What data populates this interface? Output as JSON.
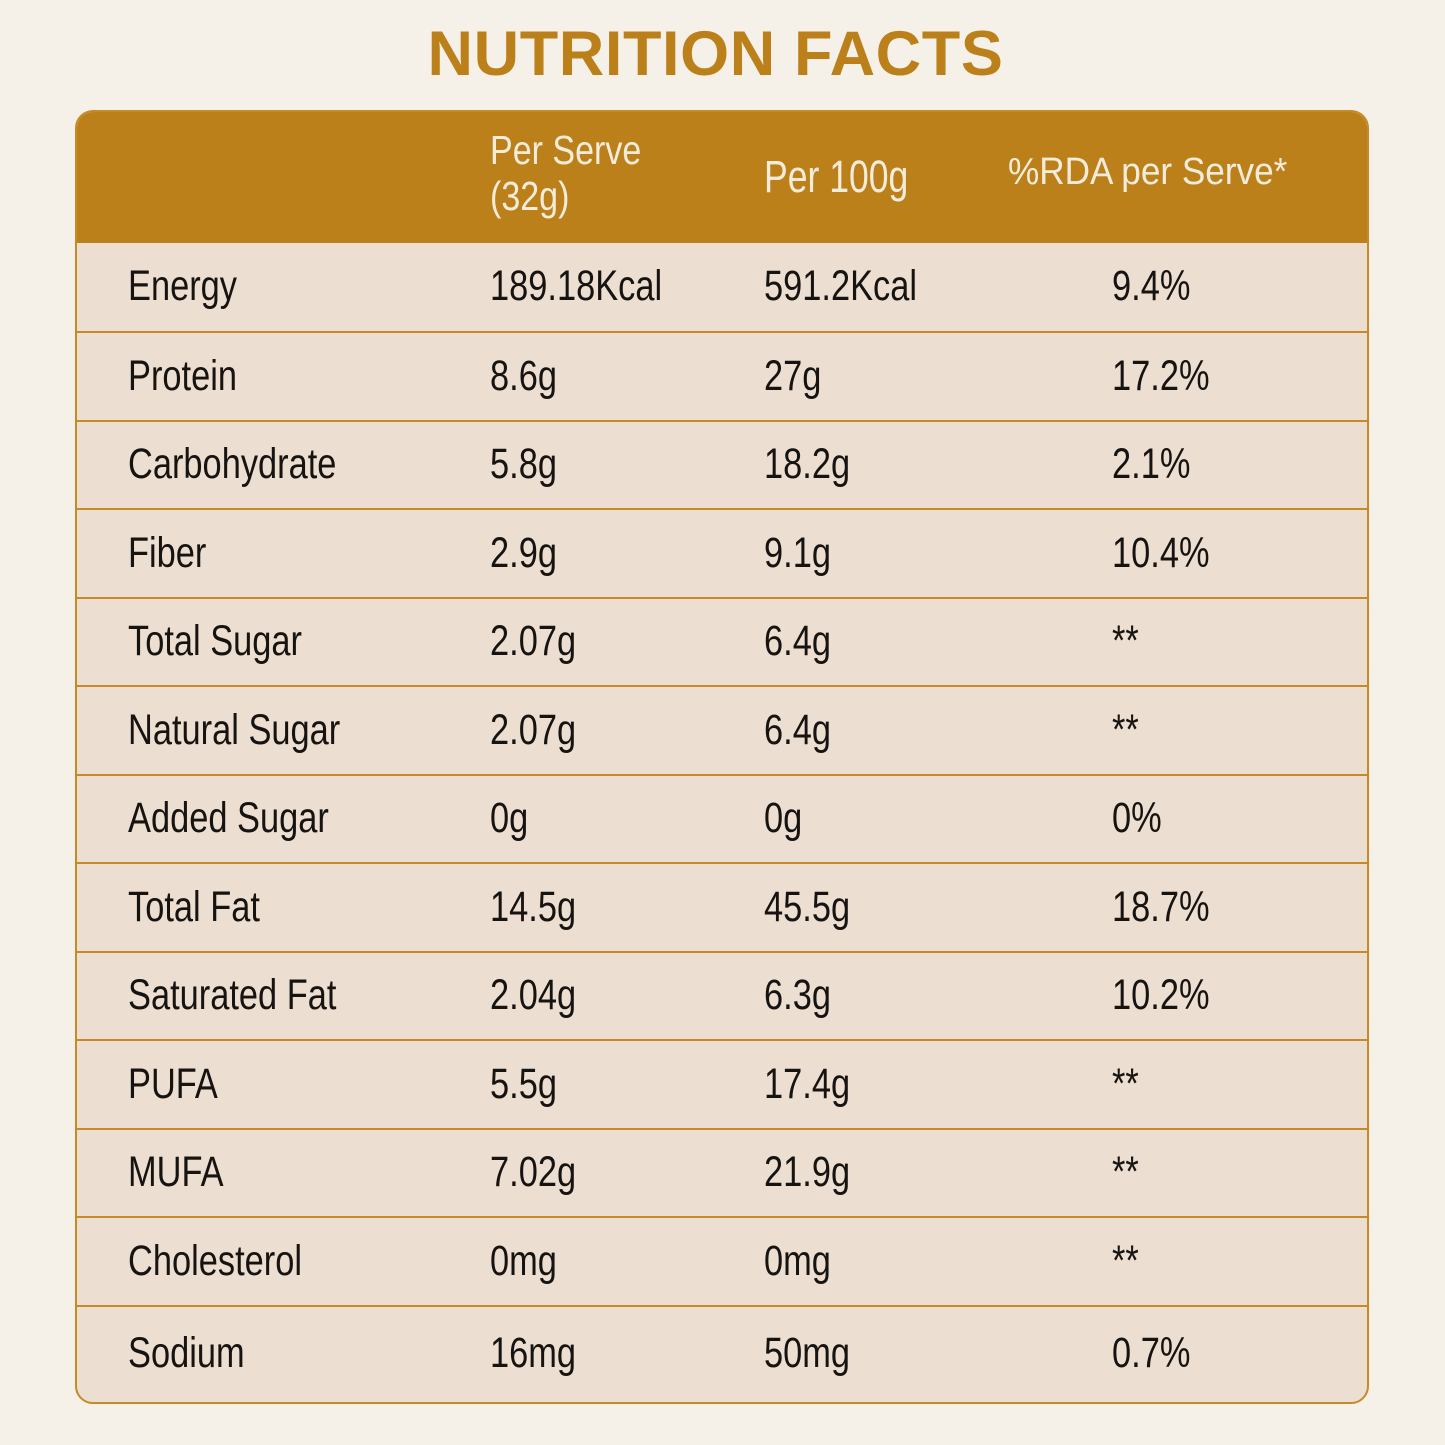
{
  "title": "NUTRITION FACTS",
  "colors": {
    "accent_gold": "#bc801a",
    "line_gold": "#c68a26",
    "page_background": "#f6f1e8",
    "row_background": "#ecdfd2",
    "body_text": "#171310",
    "header_text": "#f4ecdb"
  },
  "table": {
    "header": {
      "nutrient_column": "",
      "per_serve_line1": "Per Serve",
      "per_serve_line2": "(32g)",
      "per_100g": "Per 100g",
      "rda_per_serve": "%RDA per Serve*"
    },
    "rows": [
      {
        "label": "Energy",
        "per_serve": "189.18Kcal",
        "per_100g": "591.2Kcal",
        "rda_per_serve": "9.4%"
      },
      {
        "label": "Protein",
        "per_serve": "8.6g",
        "per_100g": "27g",
        "rda_per_serve": "17.2%"
      },
      {
        "label": "Carbohydrate",
        "per_serve": "5.8g",
        "per_100g": "18.2g",
        "rda_per_serve": "2.1%"
      },
      {
        "label": "Fiber",
        "per_serve": "2.9g",
        "per_100g": "9.1g",
        "rda_per_serve": "10.4%"
      },
      {
        "label": "Total Sugar",
        "per_serve": "2.07g",
        "per_100g": "6.4g",
        "rda_per_serve": "**"
      },
      {
        "label": "Natural Sugar",
        "per_serve": "2.07g",
        "per_100g": "6.4g",
        "rda_per_serve": "**"
      },
      {
        "label": "Added Sugar",
        "per_serve": "0g",
        "per_100g": "0g",
        "rda_per_serve": "0%"
      },
      {
        "label": "Total Fat",
        "per_serve": "14.5g",
        "per_100g": "45.5g",
        "rda_per_serve": "18.7%"
      },
      {
        "label": "Saturated Fat",
        "per_serve": "2.04g",
        "per_100g": "6.3g",
        "rda_per_serve": "10.2%"
      },
      {
        "label": "PUFA",
        "per_serve": "5.5g",
        "per_100g": "17.4g",
        "rda_per_serve": "**"
      },
      {
        "label": "MUFA",
        "per_serve": "7.02g",
        "per_100g": "21.9g",
        "rda_per_serve": "**"
      },
      {
        "label": "Cholesterol",
        "per_serve": "0mg",
        "per_100g": "0mg",
        "rda_per_serve": "**"
      },
      {
        "label": "Sodium",
        "per_serve": "16mg",
        "per_100g": "50mg",
        "rda_per_serve": "0.7%"
      }
    ]
  }
}
